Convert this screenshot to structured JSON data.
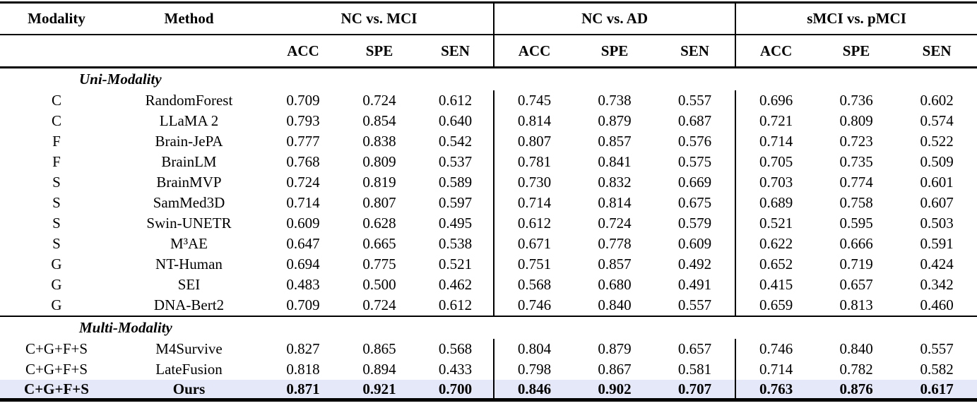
{
  "table": {
    "highlight_color": "#e5e8f8",
    "col_headers": {
      "modality": "Modality",
      "method": "Method",
      "groups": [
        {
          "label": "NC vs. MCI",
          "metrics": [
            "ACC",
            "SPE",
            "SEN"
          ]
        },
        {
          "label": "NC vs. AD",
          "metrics": [
            "ACC",
            "SPE",
            "SEN"
          ]
        },
        {
          "label": "sMCI vs. pMCI",
          "metrics": [
            "ACC",
            "SPE",
            "SEN"
          ]
        }
      ]
    },
    "sections": [
      {
        "label": "Uni-Modality",
        "rows": [
          {
            "modality": "C",
            "method": "RandomForest",
            "values": [
              "0.709",
              "0.724",
              "0.612",
              "0.745",
              "0.738",
              "0.557",
              "0.696",
              "0.736",
              "0.602"
            ]
          },
          {
            "modality": "C",
            "method": "LLaMA 2",
            "values": [
              "0.793",
              "0.854",
              "0.640",
              "0.814",
              "0.879",
              "0.687",
              "0.721",
              "0.809",
              "0.574"
            ]
          },
          {
            "modality": "F",
            "method": "Brain-JePA",
            "values": [
              "0.777",
              "0.838",
              "0.542",
              "0.807",
              "0.857",
              "0.576",
              "0.714",
              "0.723",
              "0.522"
            ]
          },
          {
            "modality": "F",
            "method": "BrainLM",
            "values": [
              "0.768",
              "0.809",
              "0.537",
              "0.781",
              "0.841",
              "0.575",
              "0.705",
              "0.735",
              "0.509"
            ]
          },
          {
            "modality": "S",
            "method": "BrainMVP",
            "values": [
              "0.724",
              "0.819",
              "0.589",
              "0.730",
              "0.832",
              "0.669",
              "0.703",
              "0.774",
              "0.601"
            ]
          },
          {
            "modality": "S",
            "method": "SamMed3D",
            "values": [
              "0.714",
              "0.807",
              "0.597",
              "0.714",
              "0.814",
              "0.675",
              "0.689",
              "0.758",
              "0.607"
            ]
          },
          {
            "modality": "S",
            "method": "Swin-UNETR",
            "values": [
              "0.609",
              "0.628",
              "0.495",
              "0.612",
              "0.724",
              "0.579",
              "0.521",
              "0.595",
              "0.503"
            ]
          },
          {
            "modality": "S",
            "method": "M³AE",
            "values": [
              "0.647",
              "0.665",
              "0.538",
              "0.671",
              "0.778",
              "0.609",
              "0.622",
              "0.666",
              "0.591"
            ]
          },
          {
            "modality": "G",
            "method": "NT-Human",
            "values": [
              "0.694",
              "0.775",
              "0.521",
              "0.751",
              "0.857",
              "0.492",
              "0.652",
              "0.719",
              "0.424"
            ]
          },
          {
            "modality": "G",
            "method": "SEI",
            "values": [
              "0.483",
              "0.500",
              "0.462",
              "0.568",
              "0.680",
              "0.491",
              "0.415",
              "0.657",
              "0.342"
            ]
          },
          {
            "modality": "G",
            "method": "DNA-Bert2",
            "values": [
              "0.709",
              "0.724",
              "0.612",
              "0.746",
              "0.840",
              "0.557",
              "0.659",
              "0.813",
              "0.460"
            ]
          }
        ]
      },
      {
        "label": "Multi-Modality",
        "rows": [
          {
            "modality": "C+G+F+S",
            "method": "M4Survive",
            "values": [
              "0.827",
              "0.865",
              "0.568",
              "0.804",
              "0.879",
              "0.657",
              "0.746",
              "0.840",
              "0.557"
            ]
          },
          {
            "modality": "C+G+F+S",
            "method": "LateFusion",
            "values": [
              "0.818",
              "0.894",
              "0.433",
              "0.798",
              "0.867",
              "0.581",
              "0.714",
              "0.782",
              "0.582"
            ]
          },
          {
            "modality": "C+G+F+S",
            "method": "Ours",
            "values": [
              "0.871",
              "0.921",
              "0.700",
              "0.846",
              "0.902",
              "0.707",
              "0.763",
              "0.876",
              "0.617"
            ],
            "highlight": true
          }
        ]
      }
    ]
  }
}
